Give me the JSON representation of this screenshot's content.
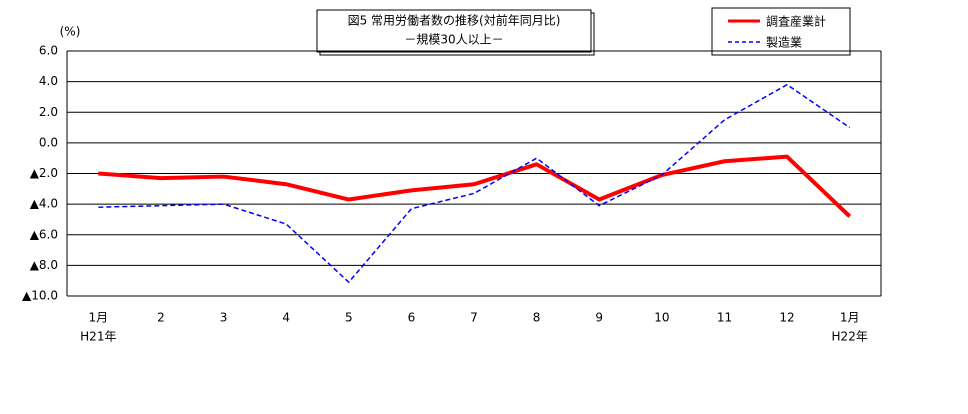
{
  "chart_data": {
    "type": "line",
    "title": "図5  常用労働者数の推移(対前年同月比)",
    "subtitle": "－規模30人以上－",
    "y_unit": "(%)",
    "categories": [
      "1月",
      "2",
      "3",
      "4",
      "5",
      "6",
      "7",
      "8",
      "9",
      "10",
      "11",
      "12",
      "1月"
    ],
    "category_years": [
      "H21年",
      null,
      null,
      null,
      null,
      null,
      null,
      null,
      null,
      null,
      null,
      null,
      "H22年"
    ],
    "series": [
      {
        "name": "調査産業計",
        "color": "#ff0000",
        "style": "solid",
        "values": [
          -2.0,
          -2.3,
          -2.2,
          -2.7,
          -3.7,
          -3.1,
          -2.7,
          -1.4,
          -3.7,
          -2.1,
          -1.2,
          -0.9,
          -4.8
        ]
      },
      {
        "name": "製造業",
        "color": "#0000ff",
        "style": "dashed",
        "values": [
          -4.2,
          -4.1,
          -4.0,
          -5.3,
          -9.1,
          -4.3,
          -3.3,
          -1.0,
          -4.1,
          -2.1,
          1.5,
          3.8,
          1.0
        ]
      }
    ],
    "ylim": [
      -10,
      6
    ],
    "yticks": [
      {
        "value": 6,
        "label": "6.0"
      },
      {
        "value": 4,
        "label": "4.0"
      },
      {
        "value": 2,
        "label": "2.0"
      },
      {
        "value": 0,
        "label": "0.0"
      },
      {
        "value": -2,
        "label": "▲2.0"
      },
      {
        "value": -4,
        "label": "▲4.0"
      },
      {
        "value": -6,
        "label": "▲6.0"
      },
      {
        "value": -8,
        "label": "▲8.0"
      },
      {
        "value": -10,
        "label": "▲10.0"
      }
    ],
    "grid": true
  }
}
